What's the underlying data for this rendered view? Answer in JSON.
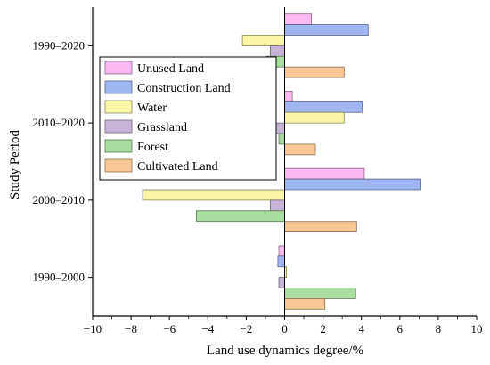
{
  "chart_data": {
    "type": "bar",
    "orientation": "horizontal",
    "title": "",
    "xlabel": "Land use dynamics degree/%",
    "ylabel": "Study Period",
    "xlim": [
      -10,
      10
    ],
    "xticks": [
      -10,
      -8,
      -6,
      -4,
      -2,
      0,
      2,
      4,
      6,
      8,
      10
    ],
    "categories": [
      "1990–2000",
      "2000–2010",
      "2010–2020",
      "1990–2020"
    ],
    "grid": false,
    "legend_position": "top-left",
    "series": [
      {
        "name": "Unused Land",
        "color": "#f9b9f2",
        "values": [
          -0.3,
          4.15,
          0.4,
          1.4
        ]
      },
      {
        "name": "Construction Land",
        "color": "#9fb6f0",
        "values": [
          -0.35,
          7.05,
          4.05,
          4.35
        ]
      },
      {
        "name": "Water",
        "color": "#f9f6a6",
        "values": [
          0.1,
          -7.4,
          3.1,
          -2.2
        ]
      },
      {
        "name": "Grassland",
        "color": "#c8b4d6",
        "values": [
          -0.3,
          -0.75,
          -1.35,
          -0.75
        ]
      },
      {
        "name": "Forest",
        "color": "#a9dc9f",
        "values": [
          3.7,
          -4.6,
          -0.3,
          -0.95
        ]
      },
      {
        "name": "Cultivated Land",
        "color": "#f7c896",
        "values": [
          2.1,
          3.75,
          1.6,
          3.1
        ]
      }
    ]
  }
}
